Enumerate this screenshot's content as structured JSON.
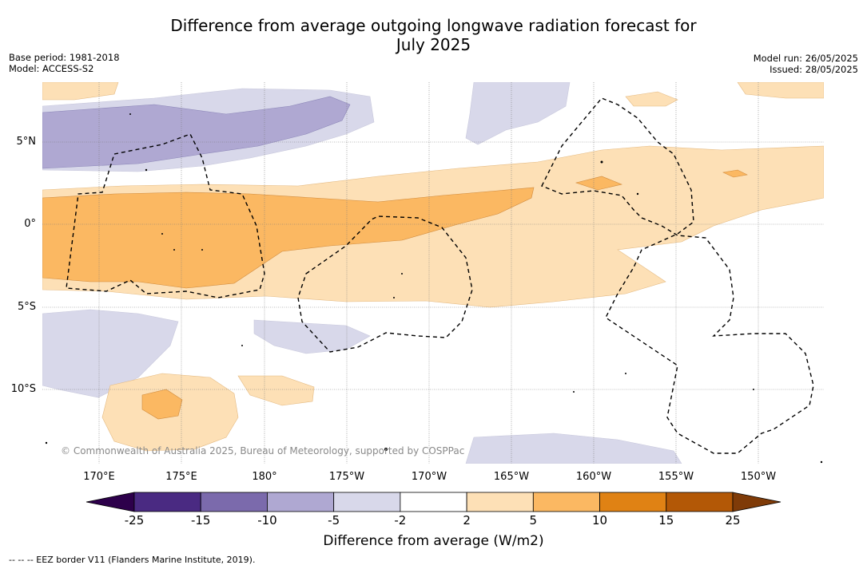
{
  "title_line1": "Difference from average outgoing longwave radiation forecast for",
  "title_line2": "July 2025",
  "base_period": "Base period: 1981-2018",
  "model": "Model: ACCESS-S2",
  "model_run": "Model run: 26/05/2025",
  "issued": "Issued: 28/05/2025",
  "lat_labels": [
    "5°N",
    "0°",
    "5°S",
    "10°S"
  ],
  "lon_labels": [
    "170°E",
    "175°E",
    "180°",
    "175°W",
    "170°W",
    "165°W",
    "160°W",
    "155°W",
    "150°W"
  ],
  "credit": "© Commonwealth of Australia 2025, Bureau of Meteorology, supported by COSPPac",
  "colorbar": {
    "ticks": [
      "-25",
      "-15",
      "-10",
      "-5",
      "-2",
      "2",
      "5",
      "10",
      "15",
      "25"
    ],
    "colors": [
      "#4a2a82",
      "#7b6aac",
      "#afa8d2",
      "#d8d8ea",
      "#ffffff",
      "#fde0b6",
      "#fbb862",
      "#e08214",
      "#b35806"
    ],
    "extend_low": "#2d004b",
    "extend_high": "#7f3b08"
  },
  "colorbar_title": "Difference from average (W/m2)",
  "eez_note": "--  --  -- EEZ border V11 (Flanders Marine Institute, 2019)."
}
